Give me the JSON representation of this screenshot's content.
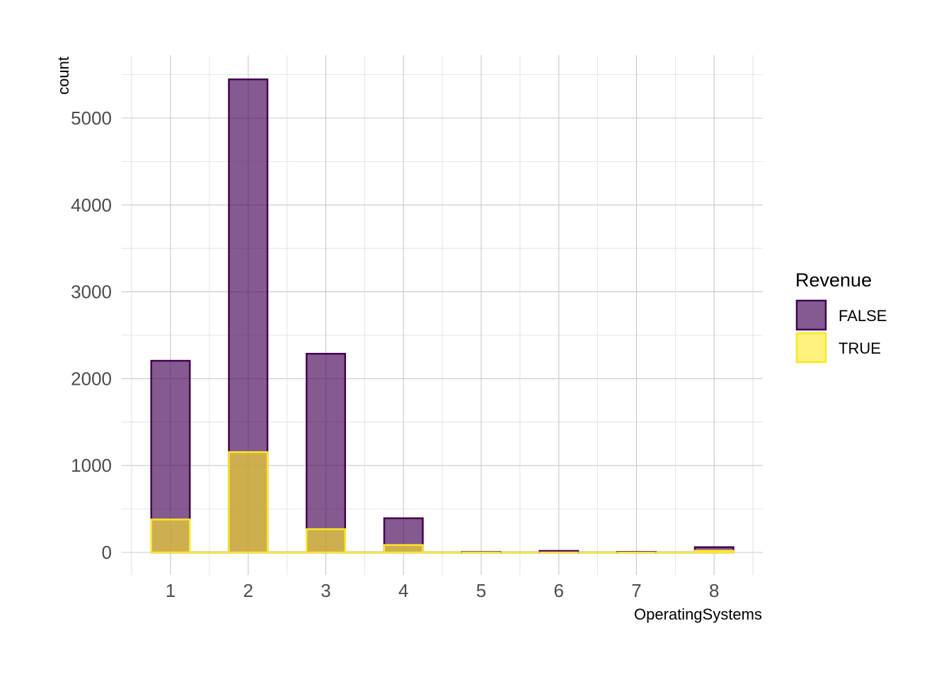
{
  "chart_data": {
    "type": "bar",
    "title": "",
    "xlabel": "OperatingSystems",
    "ylabel": "count",
    "categories": [
      "1",
      "2",
      "3",
      "4",
      "5",
      "6",
      "7",
      "8"
    ],
    "series": [
      {
        "name": "FALSE",
        "values": [
          2206,
          5446,
          2287,
          393,
          5,
          17,
          6,
          60
        ],
        "fill": "#440154",
        "fill_opacity": 0.65,
        "stroke": "#440154"
      },
      {
        "name": "TRUE",
        "values": [
          379,
          1155,
          268,
          85,
          1,
          2,
          1,
          19
        ],
        "fill": "#FDE725",
        "fill_opacity": 0.6,
        "stroke": "#FDE725"
      }
    ],
    "ylim": [
      -260,
      5700
    ],
    "yticks": [
      0,
      1000,
      2000,
      3000,
      4000,
      5000
    ],
    "ytick_labels": [
      "0",
      "1000",
      "2000",
      "3000",
      "4000",
      "5000"
    ],
    "grid": true,
    "legend": {
      "title": "Revenue",
      "position": "right",
      "entries": [
        "FALSE",
        "TRUE"
      ]
    }
  }
}
